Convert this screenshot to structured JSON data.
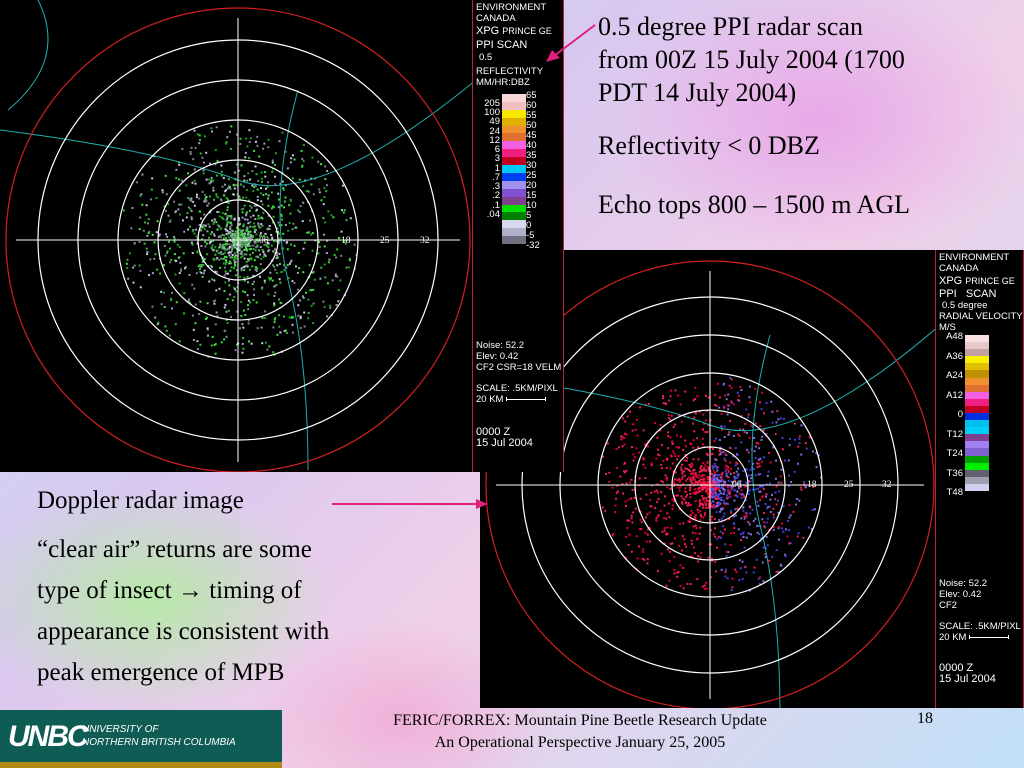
{
  "slide": {
    "top_right_text": {
      "line1": "0.5 degree PPI radar scan",
      "line2": "from 00Z 15 July 2004 (1700",
      "line3": "PDT 14 July 2004)",
      "reflectivity": "Reflectivity < 0 DBZ",
      "echo_tops": "Echo tops 800 – 1500 m AGL"
    },
    "left_text": {
      "doppler": "Doppler radar image",
      "p1": "“clear air” returns are some",
      "p2a": "type of insect ",
      "arrow": "→",
      "p2b": " timing of",
      "p3": "appearance is consistent with",
      "p4": "peak emergence of MPB"
    },
    "footer": {
      "line1": "FERIC/FORREX: Mountain Pine Beetle Research Update",
      "line2": "An Operational Perspective January 25, 2005",
      "page_number": "18"
    },
    "logo": {
      "mark": "UNBC",
      "line1": "UNIVERSITY OF",
      "line2": "NORTHERN BRITISH COLUMBIA"
    },
    "accent_arrow_color": "#e0207a"
  },
  "radar_reflectivity": {
    "range_labels": [
      "06",
      "18",
      "25",
      "32"
    ],
    "panel": {
      "org1": "ENVIRONMENT",
      "org2": "CANADA",
      "station": "XPG",
      "station_name": "PRINCE GE",
      "scan": "PPI SCAN",
      "angle": "0.5",
      "product": "REFLECTIVITY",
      "units": "MM/HR:DBZ",
      "scale_left": [
        "205",
        "100",
        "49",
        "24",
        "12",
        "6",
        "3",
        "1",
        ".7",
        ".3",
        ".2",
        ".1",
        ".04"
      ],
      "scale_right": [
        "65",
        "60",
        "55",
        "50",
        "45",
        "40",
        "35",
        "30",
        "25",
        "20",
        "15",
        "10",
        "5",
        "0",
        "-5",
        "-32"
      ],
      "colors": [
        "#f8d8d8",
        "#f0c0c0",
        "#f8e800",
        "#e0b000",
        "#f09030",
        "#e07030",
        "#f060e0",
        "#f02080",
        "#c00020",
        "#00c8f8",
        "#0040f0",
        "#a090f0",
        "#8050d0",
        "#804090",
        "#00e000",
        "#008000",
        "#d8d8f0",
        "#b0b0c8",
        "#707080"
      ],
      "noise": "Noise:  52.2",
      "elev": "Elev:  0.42",
      "filter": "CF2 CSR=18 VELM",
      "scale_text": "SCALE: .5KM/PIXL",
      "km": "20 KM",
      "time": "0000 Z",
      "date": "15 Jul 2004"
    }
  },
  "radar_velocity": {
    "range_labels": [
      "06",
      "18",
      "25",
      "32"
    ],
    "panel": {
      "org1": "ENVIRONMENT",
      "org2": "CANADA",
      "station": "XPG",
      "station_name": "PRINCE GE",
      "scan": "PPI   SCAN",
      "angle": "0.5 degree",
      "product": "RADIAL VELOCITY",
      "units": "M/S",
      "scale_labels": [
        "A48",
        "A36",
        "A24",
        "A12",
        "0",
        "T12",
        "T24",
        "T36",
        "T48"
      ],
      "colors": [
        "#f8e0e0",
        "#e8c8c8",
        "#c0a0a0",
        "#f8f000",
        "#e0c000",
        "#c09000",
        "#f09030",
        "#e07030",
        "#f060e0",
        "#f02080",
        "#c00020",
        "#0030e0",
        "#00c0f0",
        "#00d0f8",
        "#804090",
        "#a080f0",
        "#8060d0",
        "#00a000",
        "#00f000",
        "#606070",
        "#a0a0b0",
        "#d0d0f0"
      ],
      "noise": "Noise:  52.2",
      "elev": "Elev:  0.42",
      "filter": "CF2",
      "scale_text": "SCALE: .5KM/PIXL",
      "km": "20 KM",
      "time": "0000 Z",
      "date": "15 Jul 2004"
    }
  }
}
